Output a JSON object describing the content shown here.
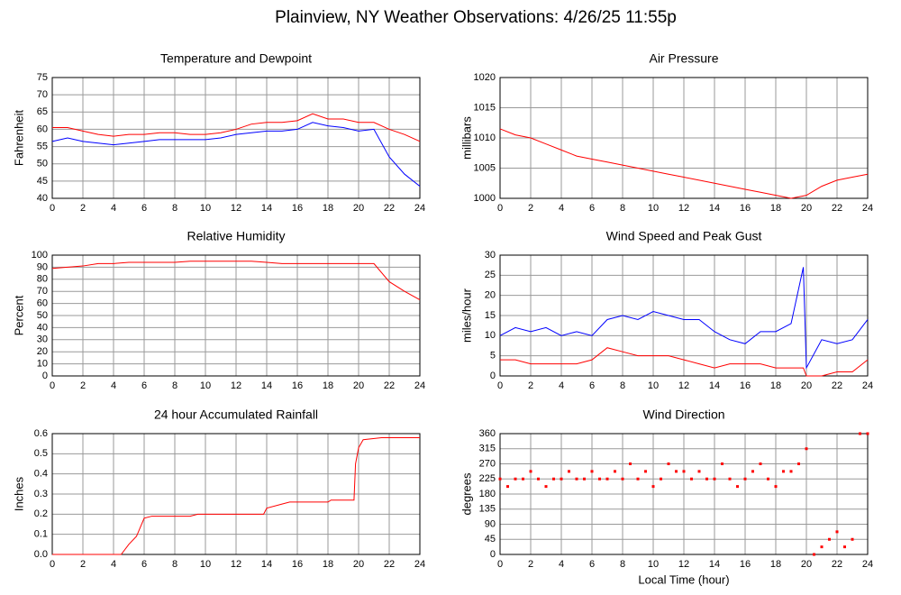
{
  "title": "Plainview, NY Weather Observations: 4/26/25 11:55p",
  "chart_data": [
    {
      "type": "line",
      "title": "Temperature and Dewpoint",
      "ylabel": "Fahrenheit",
      "x": [
        0,
        1,
        2,
        3,
        4,
        5,
        6,
        7,
        8,
        9,
        10,
        11,
        12,
        13,
        14,
        15,
        16,
        17,
        18,
        19,
        20,
        21,
        22,
        23,
        24
      ],
      "series": [
        {
          "color": "#ff0000",
          "values": [
            60.5,
            60.5,
            59.5,
            58.5,
            58,
            58.5,
            58.5,
            59,
            59,
            58.5,
            58.5,
            59,
            60,
            61.5,
            62,
            62,
            62.5,
            64.5,
            63,
            63,
            62,
            62,
            60,
            58.5,
            56.5
          ]
        },
        {
          "color": "#0000ff",
          "values": [
            56.5,
            57.5,
            56.5,
            56,
            55.5,
            56,
            56.5,
            57,
            57,
            57,
            57,
            57.5,
            58.5,
            59,
            59.5,
            59.5,
            60,
            62,
            61,
            60.5,
            59.5,
            60,
            52,
            47,
            43.5
          ]
        }
      ],
      "xlim": [
        0,
        24
      ],
      "ylim": [
        40,
        75
      ],
      "xticks": [
        0,
        2,
        4,
        6,
        8,
        10,
        12,
        14,
        16,
        18,
        20,
        22,
        24
      ],
      "yticks": [
        40,
        45,
        50,
        55,
        60,
        65,
        70,
        75
      ],
      "grid": true
    },
    {
      "type": "line",
      "title": "Air Pressure",
      "ylabel": "millibars",
      "x": [
        0,
        1,
        2,
        3,
        4,
        5,
        6,
        7,
        8,
        9,
        10,
        11,
        12,
        13,
        14,
        15,
        16,
        17,
        18,
        19,
        20,
        21,
        22,
        23,
        24
      ],
      "series": [
        {
          "color": "#ff0000",
          "values": [
            1011.5,
            1010.5,
            1010,
            1009,
            1008,
            1007,
            1006.5,
            1006,
            1005.5,
            1005,
            1004.5,
            1004,
            1003.5,
            1003,
            1002.5,
            1002,
            1001.5,
            1001,
            1000.5,
            1000,
            1000.5,
            1002,
            1003,
            1003.5,
            1004
          ]
        }
      ],
      "xlim": [
        0,
        24
      ],
      "ylim": [
        1000,
        1020
      ],
      "xticks": [
        0,
        2,
        4,
        6,
        8,
        10,
        12,
        14,
        16,
        18,
        20,
        22,
        24
      ],
      "yticks": [
        1000,
        1005,
        1010,
        1015,
        1020
      ],
      "grid": true
    },
    {
      "type": "line",
      "title": "Relative Humidity",
      "ylabel": "Percent",
      "x": [
        0,
        1,
        2,
        3,
        4,
        5,
        6,
        7,
        8,
        9,
        10,
        11,
        12,
        13,
        14,
        15,
        16,
        17,
        18,
        19,
        20,
        21,
        22,
        23,
        24
      ],
      "series": [
        {
          "color": "#ff0000",
          "values": [
            89,
            90,
            91,
            93,
            93,
            94,
            94,
            94,
            94,
            95,
            95,
            95,
            95,
            95,
            94,
            93,
            93,
            93,
            93,
            93,
            93,
            93,
            78,
            70,
            63
          ]
        }
      ],
      "xlim": [
        0,
        24
      ],
      "ylim": [
        0,
        100
      ],
      "xticks": [
        0,
        2,
        4,
        6,
        8,
        10,
        12,
        14,
        16,
        18,
        20,
        22,
        24
      ],
      "yticks": [
        0,
        10,
        20,
        30,
        40,
        50,
        60,
        70,
        80,
        90,
        100
      ],
      "grid": true
    },
    {
      "type": "line",
      "title": "Wind Speed and Peak Gust",
      "ylabel": "miles/hour",
      "x": [
        0,
        1,
        2,
        3,
        4,
        5,
        6,
        7,
        8,
        9,
        10,
        11,
        12,
        13,
        14,
        15,
        16,
        17,
        18,
        19,
        19.8,
        20,
        21,
        22,
        23,
        24
      ],
      "series": [
        {
          "color": "#0000ff",
          "values": [
            10,
            12,
            11,
            12,
            10,
            11,
            10,
            14,
            15,
            14,
            16,
            15,
            14,
            14,
            11,
            9,
            8,
            11,
            11,
            13,
            27,
            2,
            9,
            8,
            9,
            14
          ]
        },
        {
          "color": "#ff0000",
          "values": [
            4,
            4,
            3,
            3,
            3,
            3,
            4,
            7,
            6,
            5,
            5,
            5,
            4,
            3,
            2,
            3,
            3,
            3,
            2,
            2,
            2,
            0,
            0,
            1,
            1,
            4
          ]
        }
      ],
      "xlim": [
        0,
        24
      ],
      "ylim": [
        0,
        30
      ],
      "xticks": [
        0,
        2,
        4,
        6,
        8,
        10,
        12,
        14,
        16,
        18,
        20,
        22,
        24
      ],
      "yticks": [
        0,
        5,
        10,
        15,
        20,
        25,
        30
      ],
      "grid": true
    },
    {
      "type": "line",
      "title": "24 hour Accumulated Rainfall",
      "ylabel": "Inches",
      "x": [
        0,
        4.5,
        5,
        5.5,
        6,
        6.5,
        9,
        9.5,
        13.8,
        14,
        15,
        15.5,
        18,
        18.2,
        19.7,
        19.8,
        20,
        20.3,
        21.5,
        24
      ],
      "series": [
        {
          "color": "#ff0000",
          "values": [
            0,
            0,
            0.05,
            0.09,
            0.18,
            0.19,
            0.19,
            0.2,
            0.2,
            0.23,
            0.25,
            0.26,
            0.26,
            0.27,
            0.27,
            0.45,
            0.53,
            0.57,
            0.58,
            0.58
          ]
        }
      ],
      "xlim": [
        0,
        24
      ],
      "ylim": [
        0,
        0.6
      ],
      "xticks": [
        0,
        2,
        4,
        6,
        8,
        10,
        12,
        14,
        16,
        18,
        20,
        22,
        24
      ],
      "yticks": [
        {
          "value": 0,
          "label": "0.0"
        },
        0.1,
        0.2,
        0.3,
        0.4,
        0.5,
        0.6
      ],
      "grid": true
    },
    {
      "type": "scatter",
      "title": "Wind Direction",
      "ylabel": "degrees",
      "xlabel": "Local Time (hour)",
      "x": [
        0,
        0.5,
        1,
        1.5,
        2,
        2.5,
        3,
        3.5,
        4,
        4.5,
        5,
        5.5,
        6,
        6.5,
        7,
        7.5,
        8,
        8.5,
        9,
        9.5,
        10,
        10.5,
        11,
        11.5,
        12,
        12.5,
        13,
        13.5,
        14,
        14.5,
        15,
        15.5,
        16,
        16.5,
        17,
        17.5,
        18,
        18.5,
        19,
        19.5,
        20,
        20.5,
        21,
        21.5,
        22,
        22.5,
        23,
        23.5,
        24
      ],
      "series": [
        {
          "color": "#ff0000",
          "values": [
            225,
            202.5,
            225,
            225,
            247.5,
            225,
            202.5,
            225,
            225,
            247.5,
            225,
            225,
            247.5,
            225,
            225,
            247.5,
            225,
            270,
            225,
            247.5,
            202.5,
            225,
            270,
            247.5,
            247.5,
            225,
            247.5,
            225,
            225,
            270,
            225,
            202.5,
            225,
            247.5,
            270,
            225,
            202.5,
            247.5,
            247.5,
            270,
            315,
            0,
            22.5,
            45,
            67.5,
            22.5,
            45,
            360,
            360
          ]
        }
      ],
      "xlim": [
        0,
        24
      ],
      "ylim": [
        0,
        360
      ],
      "xticks": [
        0,
        2,
        4,
        6,
        8,
        10,
        12,
        14,
        16,
        18,
        20,
        22,
        24
      ],
      "yticks": [
        0,
        45,
        90,
        135,
        180,
        225,
        270,
        315,
        360
      ],
      "grid": true
    }
  ]
}
